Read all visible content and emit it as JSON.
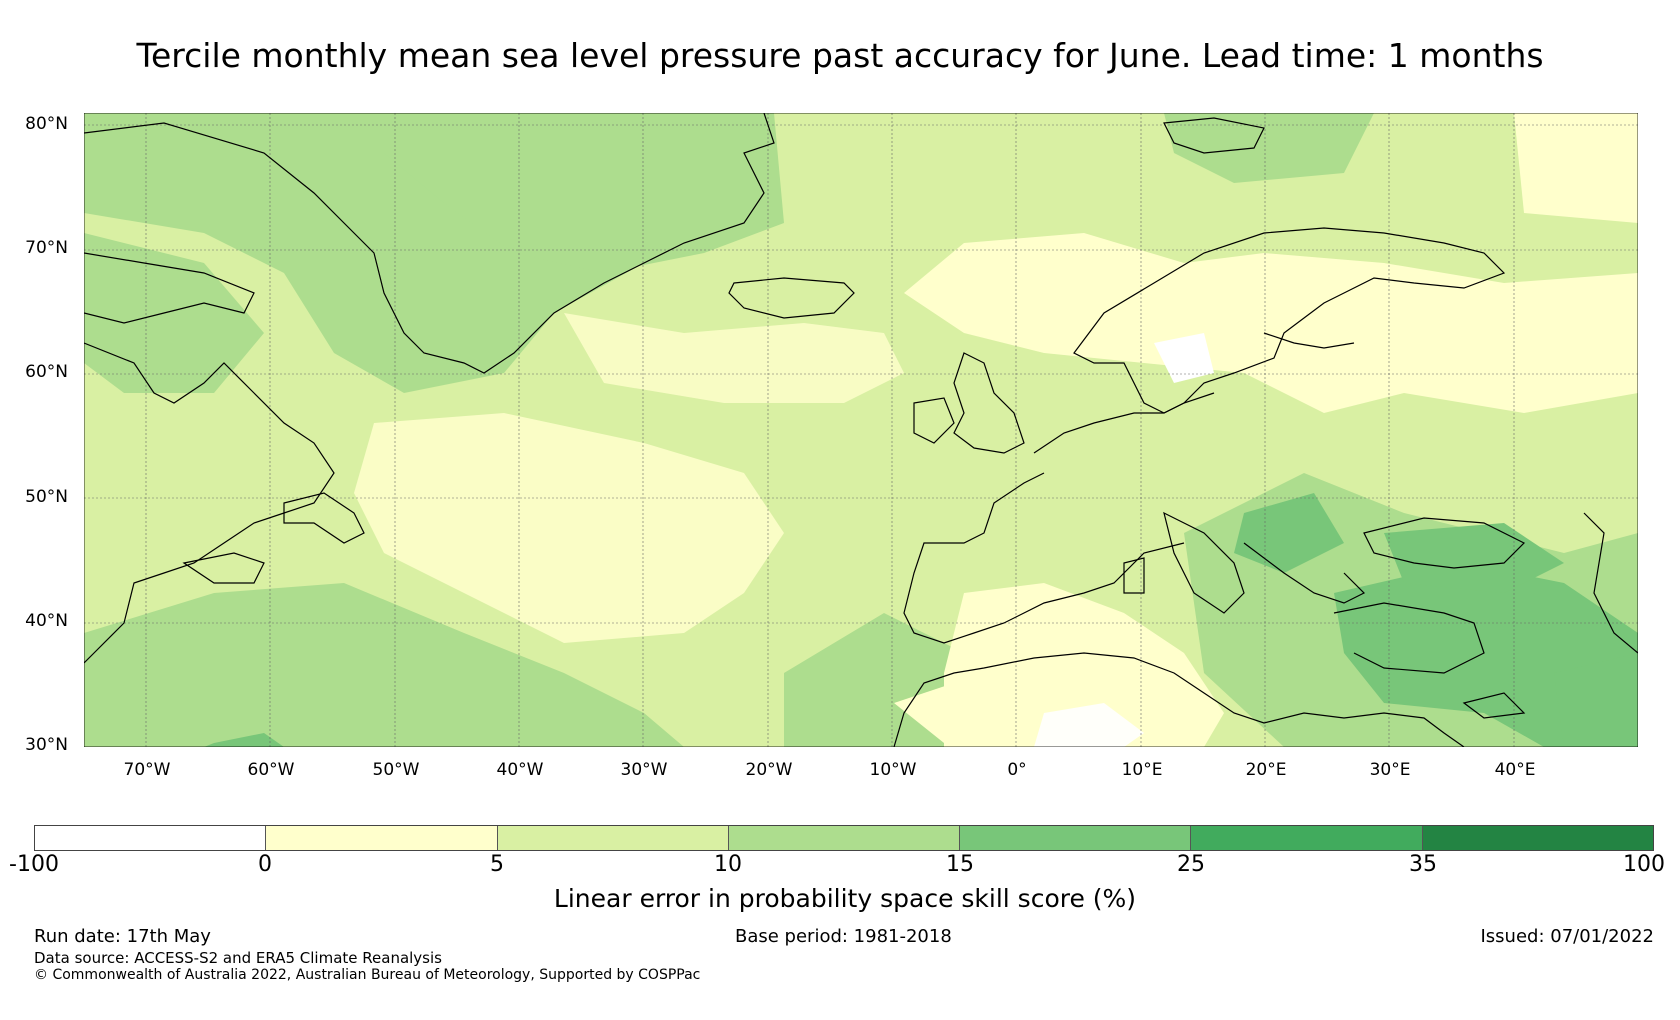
{
  "title": "Tercile monthly mean sea level pressure past accuracy for June. Lead time: 1 months",
  "lat_labels": [
    "80°N",
    "70°N",
    "60°N",
    "50°N",
    "40°N",
    "30°N"
  ],
  "lon_labels": [
    "70°W",
    "60°W",
    "50°W",
    "40°W",
    "30°W",
    "20°W",
    "10°W",
    "0°",
    "10°E",
    "20°E",
    "30°E",
    "40°E"
  ],
  "map_extent": {
    "lon_min": -75,
    "lon_max": 50,
    "lat_min": 30,
    "lat_max": 81
  },
  "colorbar": {
    "ticks": [
      "-100",
      "0",
      "5",
      "10",
      "15",
      "25",
      "35",
      "100"
    ],
    "colors": [
      "#ffffff",
      "#ffffcc",
      "#d9f0a3",
      "#addd8e",
      "#78c679",
      "#41ab5d",
      "#238443"
    ],
    "label": "Linear error in probability space skill score (%)"
  },
  "footer": {
    "run_date": "Run date: 17th May",
    "base_period": "Base period: 1981-2018",
    "issued": "Issued: 07/01/2022",
    "data_source": "Data source: ACCESS-S2 and ERA5 Climate Reanalysis",
    "copyright": "© Commonwealth of Australia 2022, Australian Bureau of Meteorology, Supported by COSPPac"
  }
}
